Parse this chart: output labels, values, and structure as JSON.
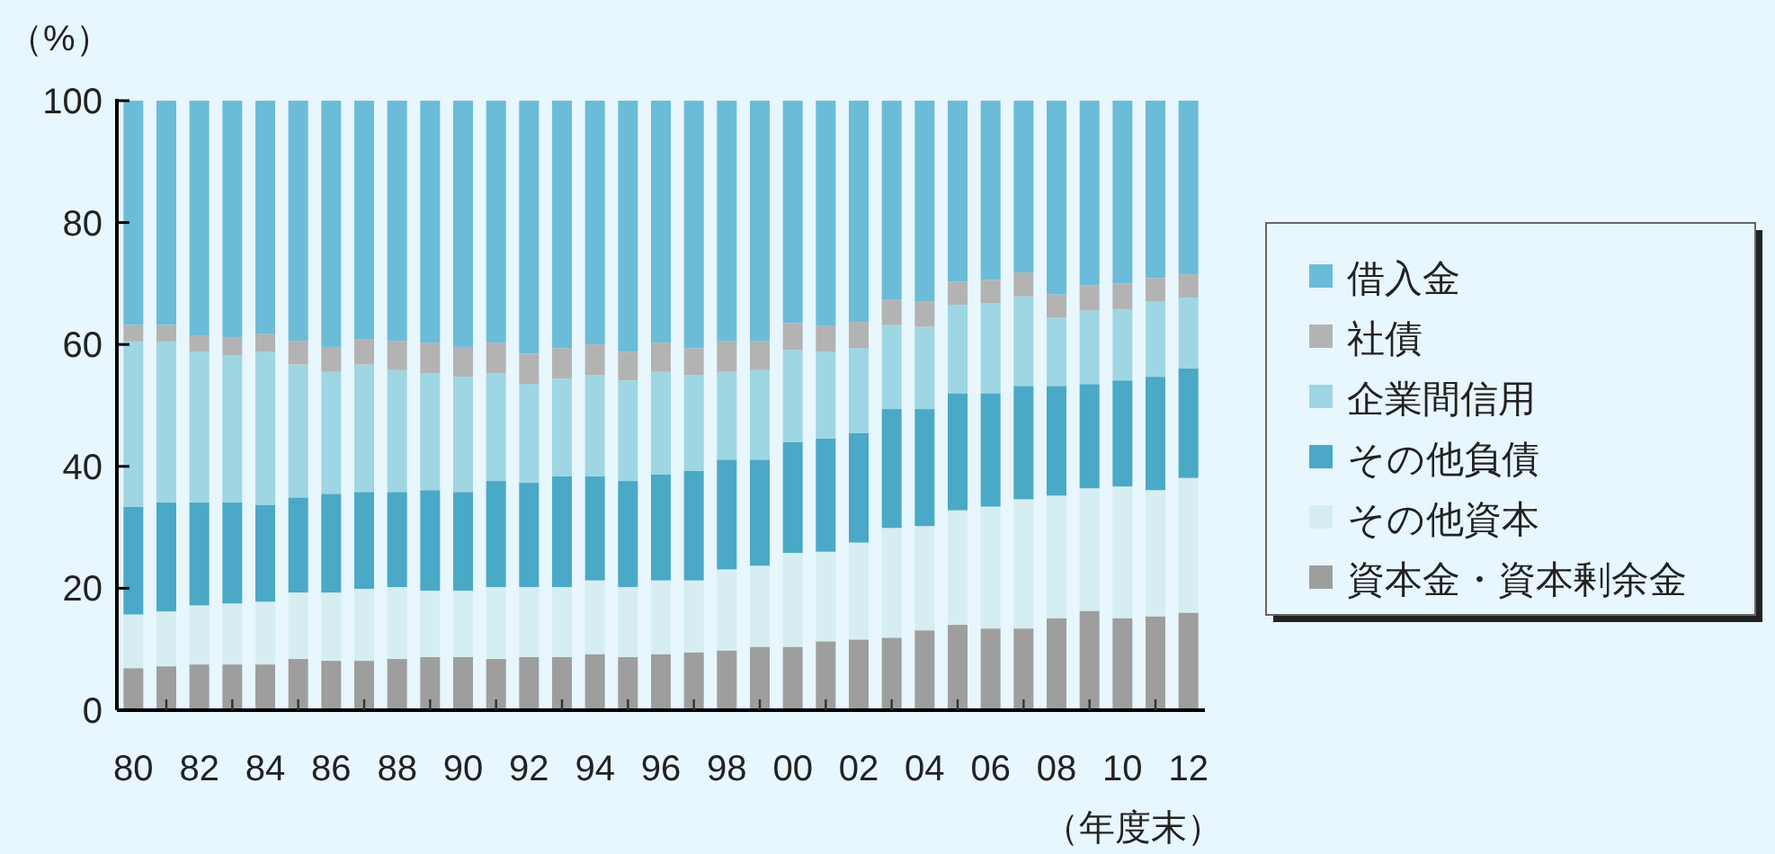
{
  "chart_data": {
    "type": "bar",
    "stacked": true,
    "ylabel": "（%）",
    "xlabel": "（年度末）",
    "categories": [
      "80",
      null,
      "82",
      null,
      "84",
      null,
      "86",
      null,
      "88",
      null,
      "90",
      null,
      "92",
      null,
      "94",
      null,
      "96",
      null,
      "98",
      null,
      "00",
      null,
      "02",
      null,
      "04",
      null,
      "06",
      null,
      "08",
      null,
      "10",
      null,
      "12"
    ],
    "ylim": [
      0,
      100
    ],
    "yticks": [
      0,
      20,
      40,
      60,
      80,
      100
    ],
    "grid": false,
    "legend": "right",
    "series": [
      {
        "name": "資本金・資本剰余金",
        "color": "#9e9e9e",
        "values": [
          6.9,
          7.2,
          7.5,
          7.5,
          7.5,
          8.4,
          8.1,
          8.1,
          8.4,
          8.7,
          8.7,
          8.4,
          8.7,
          8.7,
          9.2,
          8.7,
          9.2,
          9.5,
          9.8,
          10.4,
          10.4,
          11.3,
          11.6,
          11.9,
          13.1,
          14.0,
          13.4,
          13.4,
          15.1,
          16.3,
          15.1,
          15.4,
          16.0
        ]
      },
      {
        "name": "その他資本",
        "color": "#d6eef2",
        "values": [
          8.8,
          9.0,
          9.7,
          10.0,
          10.3,
          10.9,
          11.2,
          11.8,
          11.8,
          10.9,
          10.9,
          11.8,
          11.5,
          11.5,
          12.1,
          11.5,
          12.1,
          11.8,
          13.3,
          13.3,
          15.4,
          14.7,
          15.9,
          18.0,
          17.1,
          18.8,
          20.0,
          21.2,
          20.1,
          20.1,
          21.6,
          20.7,
          22.1
        ]
      },
      {
        "name": "その他負債",
        "color": "#4aa9c6",
        "values": [
          17.7,
          17.9,
          16.9,
          16.6,
          15.9,
          15.6,
          16.2,
          15.9,
          15.6,
          16.5,
          16.2,
          17.4,
          17.1,
          18.2,
          17.1,
          17.4,
          17.4,
          18.0,
          18.0,
          17.4,
          18.2,
          18.6,
          18.0,
          19.5,
          19.2,
          19.2,
          18.6,
          18.6,
          18.0,
          17.1,
          17.4,
          18.6,
          18.0
        ]
      },
      {
        "name": "企業間信用",
        "color": "#9fd6e3",
        "values": [
          27.1,
          26.4,
          24.7,
          24.1,
          25.1,
          21.8,
          20.0,
          20.9,
          20.0,
          19.2,
          18.9,
          17.7,
          16.2,
          16.0,
          16.6,
          16.5,
          16.8,
          15.7,
          14.4,
          14.7,
          15.1,
          14.2,
          13.9,
          13.8,
          13.5,
          14.5,
          14.8,
          14.7,
          11.2,
          12.1,
          11.7,
          12.4,
          11.6
        ]
      },
      {
        "name": "社債",
        "color": "#b3b3b3",
        "values": [
          2.7,
          2.7,
          2.7,
          3.0,
          2.9,
          3.9,
          4.1,
          4.2,
          4.8,
          5.0,
          4.9,
          5.0,
          5.0,
          5.0,
          5.0,
          4.7,
          4.8,
          4.4,
          5.1,
          4.8,
          4.4,
          4.3,
          4.3,
          4.1,
          4.2,
          3.8,
          3.8,
          3.9,
          3.8,
          4.1,
          4.2,
          3.8,
          3.8
        ]
      },
      {
        "name": "借入金",
        "color": "#6bbcd8",
        "values": [
          36.8,
          36.8,
          38.5,
          38.8,
          38.3,
          39.4,
          40.4,
          39.1,
          39.4,
          39.7,
          40.4,
          39.7,
          41.5,
          40.6,
          40.0,
          41.2,
          39.7,
          40.6,
          39.4,
          39.4,
          36.5,
          36.9,
          36.3,
          32.7,
          32.9,
          29.7,
          29.4,
          28.2,
          31.8,
          30.3,
          30.0,
          29.1,
          28.5
        ]
      }
    ]
  }
}
